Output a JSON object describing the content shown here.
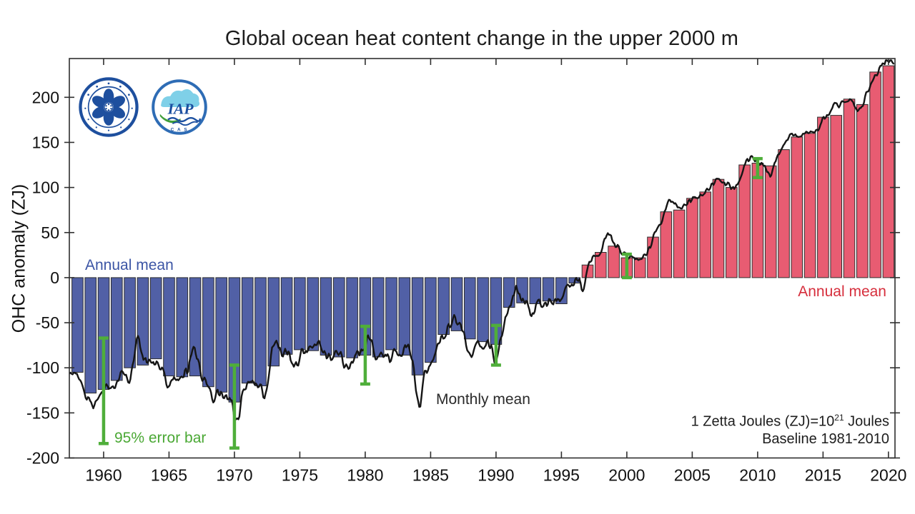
{
  "title": "Global ocean heat content change in the upper 2000 m",
  "axes": {
    "y_label": "OHC anomaly (ZJ)",
    "y_ticks": [
      200,
      150,
      100,
      50,
      0,
      -50,
      -100,
      -150,
      -200
    ],
    "x_ticks": [
      1960,
      1965,
      1970,
      1975,
      1980,
      1985,
      1990,
      1995,
      2000,
      2005,
      2010,
      2015,
      2020
    ],
    "x_range": [
      1957.38,
      2020.5
    ],
    "y_range": [
      -200,
      243
    ]
  },
  "annotations": {
    "annual_mean_blue": "Annual mean",
    "annual_mean_red": "Annual mean",
    "monthly_mean": "Monthly mean",
    "error_bar_label": "95% error bar",
    "unit_pre": "1 Zetta Joules (ZJ)=10",
    "unit_sup": "21",
    "unit_post": " Joules",
    "baseline": "Baseline 1981-2010"
  },
  "logos": {
    "cas_name": "cas-logo",
    "iap_text": "IAP",
    "iap_sub_text": "C A S"
  },
  "colors": {
    "bar_negative": "#5160a6",
    "bar_positive": "#e85c72",
    "bar_edge": "#2e2e2e",
    "monthly_line": "#151515",
    "error_bar": "#4fae3a",
    "blue_label": "#3c55a5",
    "red_label": "#d62e3c",
    "green_label": "#4aa834",
    "frame": "#2f2f2f",
    "logo_blue": "#1e4f9e",
    "logo_light_blue": "#7fd0e8",
    "logo_green": "#3f9e3a"
  },
  "chart_data": {
    "type": "bar",
    "title": "Global ocean heat content change in the upper 2000 m",
    "xlabel": "",
    "ylabel": "OHC anomaly (ZJ)",
    "ylim": [
      -200,
      243
    ],
    "xlim": [
      1957.38,
      2020.5
    ],
    "grid": false,
    "unit_note": "1 Zetta Joules (ZJ)=10^21 Joules",
    "baseline_note": "Baseline 1981-2010",
    "years": [
      1958,
      1959,
      1960,
      1961,
      1962,
      1963,
      1964,
      1965,
      1966,
      1967,
      1968,
      1969,
      1970,
      1971,
      1972,
      1973,
      1974,
      1975,
      1976,
      1977,
      1978,
      1979,
      1980,
      1981,
      1982,
      1983,
      1984,
      1985,
      1986,
      1987,
      1988,
      1989,
      1990,
      1991,
      1992,
      1993,
      1994,
      1995,
      1996,
      1997,
      1998,
      1999,
      2000,
      2001,
      2002,
      2003,
      2004,
      2005,
      2006,
      2007,
      2008,
      2009,
      2010,
      2011,
      2012,
      2013,
      2014,
      2015,
      2016,
      2017,
      2018,
      2019,
      2020
    ],
    "series": [
      {
        "name": "Annual mean",
        "type": "bar",
        "values": [
          -105,
          -128,
          -124,
          -114,
          -100,
          -97,
          -90,
          -109,
          -110,
          -109,
          -121,
          -127,
          -138,
          -117,
          -120,
          -98,
          -85,
          -80,
          -81,
          -86,
          -88,
          -89,
          -86,
          -88,
          -80,
          -86,
          -108,
          -94,
          -63,
          -59,
          -68,
          -71,
          -74,
          -33,
          -28,
          -29,
          -26,
          -29,
          -6,
          14,
          28,
          35,
          22,
          22,
          45,
          73,
          75,
          88,
          95,
          109,
          100,
          125,
          127,
          124,
          142,
          156,
          160,
          178,
          180,
          198,
          192,
          228,
          235
        ]
      },
      {
        "name": "Monthly mean",
        "type": "line",
        "description": "monthly values oscillating around the annual means (rendered as derived wiggle)"
      }
    ],
    "error_bars_95pct": [
      {
        "year": 1960,
        "low": -184,
        "high": -67
      },
      {
        "year": 1970,
        "low": -189,
        "high": -97
      },
      {
        "year": 1980,
        "low": -118,
        "high": -54
      },
      {
        "year": 1990,
        "low": -97,
        "high": -53
      },
      {
        "year": 2000,
        "low": 0,
        "high": 26
      },
      {
        "year": 2010,
        "low": 111,
        "high": 132
      }
    ]
  }
}
